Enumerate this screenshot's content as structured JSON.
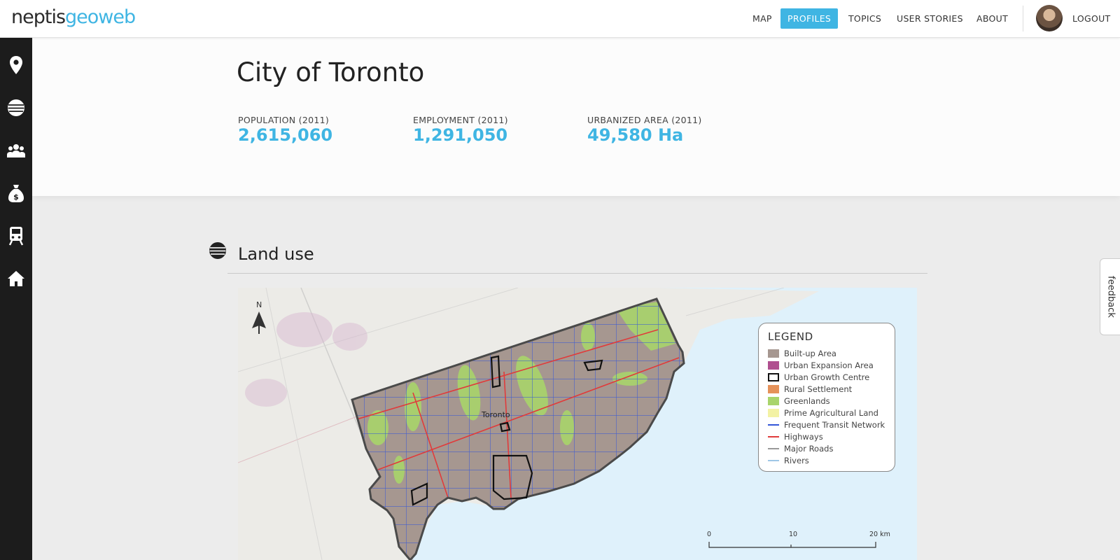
{
  "app": {
    "logo_part1": "neptis",
    "logo_part2": "geoweb"
  },
  "nav": {
    "items": [
      {
        "label": "MAP"
      },
      {
        "label": "PROFILES"
      },
      {
        "label": "TOPICS"
      },
      {
        "label": "USER STORIES"
      },
      {
        "label": "ABOUT"
      }
    ],
    "active": "PROFILES",
    "logout_label": "LOGOUT"
  },
  "sidebar": {
    "items": [
      {
        "icon": "map-pin-icon"
      },
      {
        "icon": "globe-icon"
      },
      {
        "icon": "people-icon"
      },
      {
        "icon": "money-bag-icon"
      },
      {
        "icon": "train-icon"
      },
      {
        "icon": "home-icon"
      }
    ]
  },
  "profile": {
    "title": "City of Toronto",
    "stats": [
      {
        "label": "POPULATION (2011)",
        "value": "2,615,060"
      },
      {
        "label": "EMPLOYMENT (2011)",
        "value": "1,291,050"
      },
      {
        "label": "URBANIZED AREA (2011)",
        "value": "49,580 Ha"
      }
    ]
  },
  "section": {
    "title": "Land use",
    "icon": "globe-icon"
  },
  "map": {
    "north_label": "N",
    "city_label": "Toronto",
    "legend": {
      "title": "LEGEND",
      "items": [
        {
          "label": "Built-up Area",
          "type": "fill",
          "color": "#a69790"
        },
        {
          "label": "Urban Expansion Area",
          "type": "fill",
          "color": "#b04f8f"
        },
        {
          "label": "Urban Growth Centre",
          "type": "outline",
          "color": "#111111"
        },
        {
          "label": "Rural Settlement",
          "type": "fill",
          "color": "#e5925a"
        },
        {
          "label": "Greenlands",
          "type": "fill",
          "color": "#a9d46b"
        },
        {
          "label": "Prime Agricultural Land",
          "type": "fill",
          "color": "#f3f2a4"
        },
        {
          "label": "Frequent Transit Network",
          "type": "line",
          "color": "#3456d8"
        },
        {
          "label": "Highways",
          "type": "line",
          "color": "#e03b3b"
        },
        {
          "label": "Major Roads",
          "type": "line",
          "color": "#999999"
        },
        {
          "label": "Rivers",
          "type": "line",
          "color": "#9fc7e6"
        }
      ]
    },
    "scale": {
      "ticks": [
        "0",
        "10",
        "20 km"
      ]
    }
  },
  "feedback_label": "feedback",
  "colors": {
    "accent": "#3fb5e3",
    "sidebar_bg": "#1c1c1c",
    "water": "#dff1fb"
  }
}
